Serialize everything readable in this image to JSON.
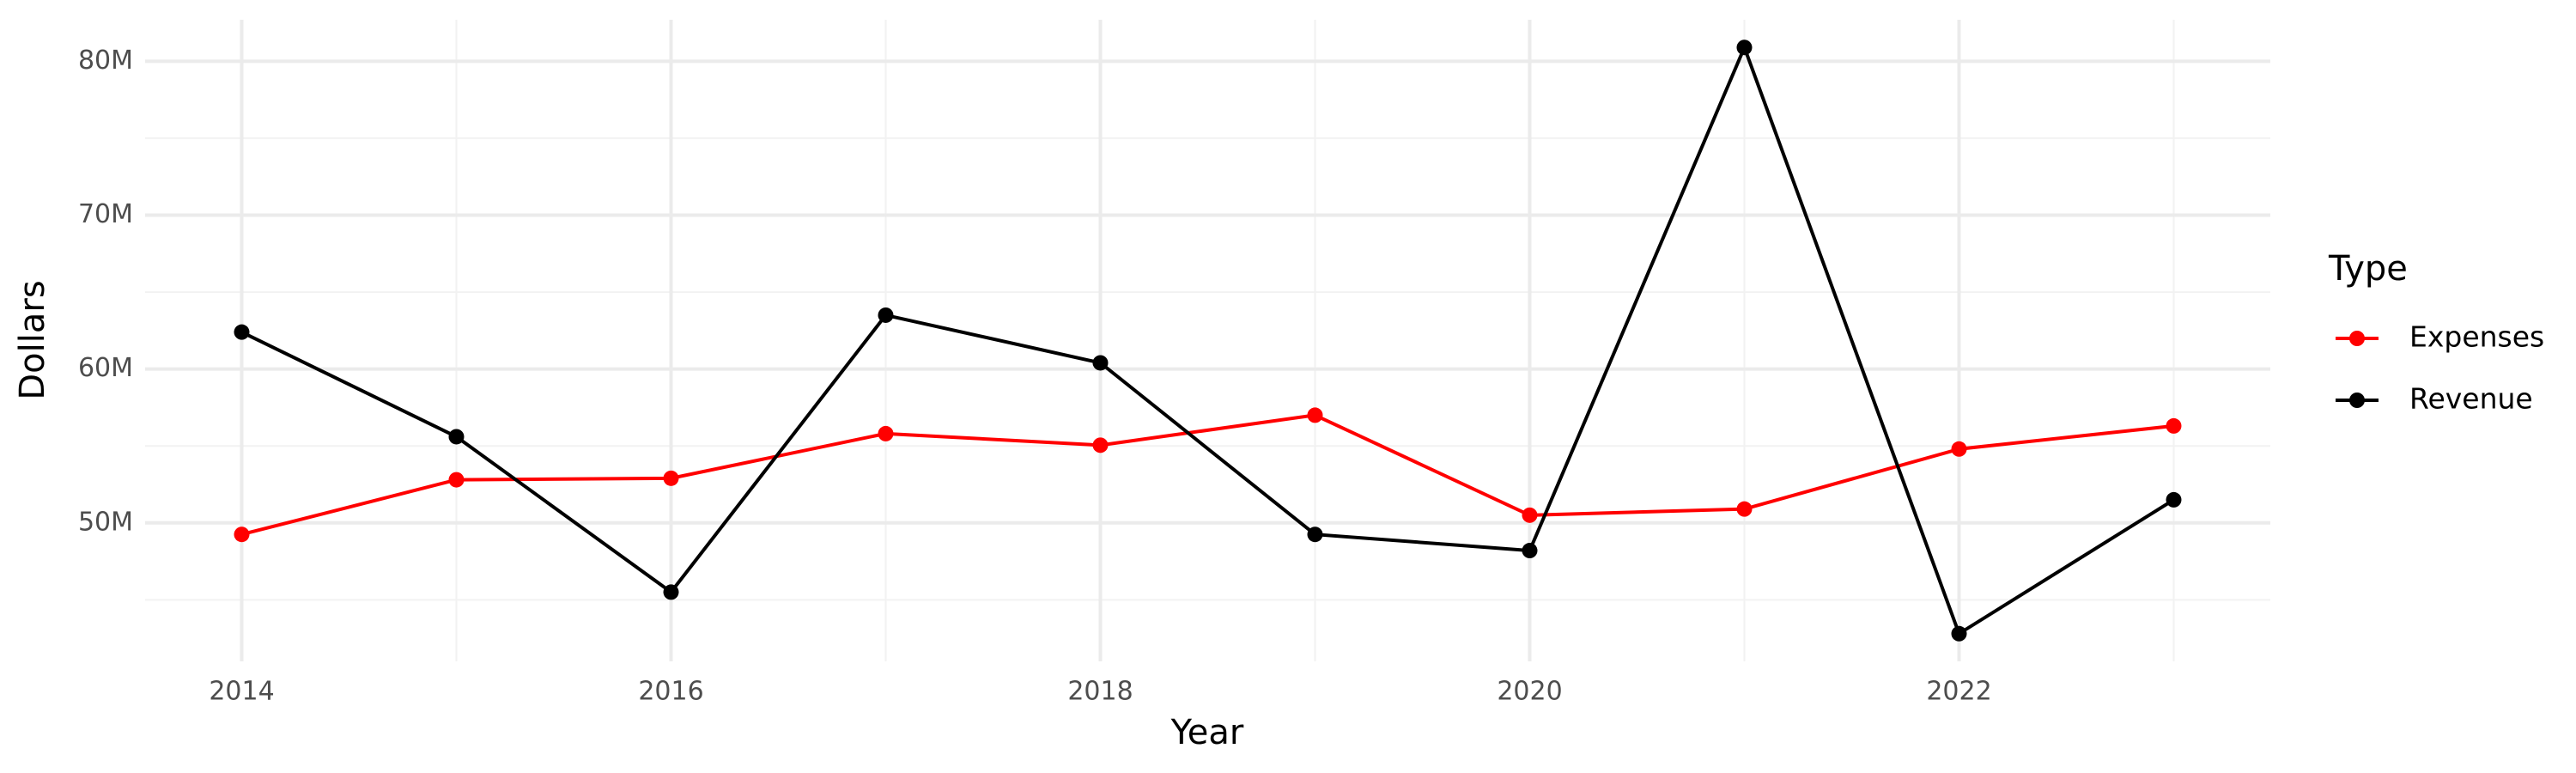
{
  "chart_data": {
    "type": "line",
    "x_label": "Year",
    "y_label": "Dollars",
    "legend_title": "Type",
    "x": [
      2014,
      2015,
      2016,
      2017,
      2018,
      2019,
      2020,
      2021,
      2022,
      2023
    ],
    "series": [
      {
        "name": "Expenses",
        "color": "#ff0000",
        "values": [
          49250000,
          52800000,
          52900000,
          55800000,
          55050000,
          57000000,
          50500000,
          50900000,
          54800000,
          56300000
        ]
      },
      {
        "name": "Revenue",
        "color": "#000000",
        "values": [
          62400000,
          55600000,
          45500000,
          63500000,
          60400000,
          49250000,
          48200000,
          80900000,
          42800000,
          51500000
        ]
      }
    ],
    "xlim": [
      2013.55,
      2023.45
    ],
    "xticks": [
      2014,
      2016,
      2018,
      2020,
      2022
    ],
    "ylim": [
      41000000,
      82700000
    ],
    "yticks": [
      {
        "value": 50000000,
        "label": "50M"
      },
      {
        "value": 60000000,
        "label": "60M"
      },
      {
        "value": 70000000,
        "label": "70M"
      },
      {
        "value": 80000000,
        "label": "80M"
      }
    ],
    "grid": true,
    "legend_position": "right"
  }
}
